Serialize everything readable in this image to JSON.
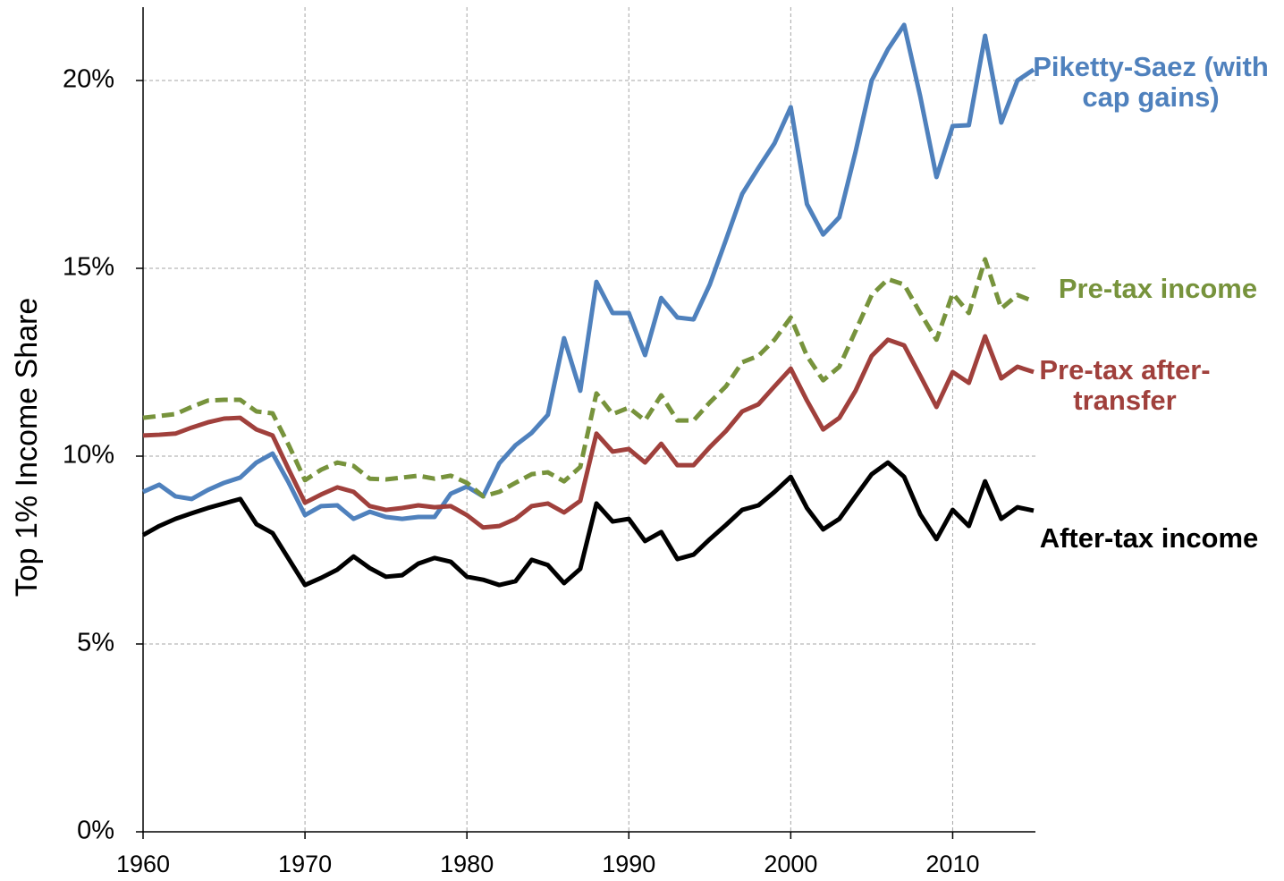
{
  "chart_data": {
    "type": "line",
    "ylabel": "Top 1% Income Share",
    "x": [
      1960,
      1961,
      1962,
      1963,
      1964,
      1965,
      1966,
      1967,
      1968,
      1969,
      1970,
      1971,
      1972,
      1973,
      1974,
      1975,
      1976,
      1977,
      1978,
      1979,
      1980,
      1981,
      1982,
      1983,
      1984,
      1985,
      1986,
      1987,
      1988,
      1989,
      1990,
      1991,
      1992,
      1993,
      1994,
      1995,
      1996,
      1997,
      1998,
      1999,
      2000,
      2001,
      2002,
      2003,
      2004,
      2005,
      2006,
      2007,
      2008,
      2009,
      2010,
      2011,
      2012,
      2013,
      2014,
      2015
    ],
    "xlim": [
      1960,
      2015
    ],
    "xticks": [
      1960,
      1970,
      1980,
      1990,
      2000,
      2010
    ],
    "ylim": [
      0,
      22.5
    ],
    "yticks": [
      {
        "value": 0,
        "label": "0%"
      },
      {
        "value": 5,
        "label": "5%"
      },
      {
        "value": 10,
        "label": "10%"
      },
      {
        "value": 15,
        "label": "15%"
      },
      {
        "value": 20,
        "label": "20%"
      }
    ],
    "grid": true,
    "series": [
      {
        "name": "Piketty-Saez (with cap gains)",
        "color": "#4f81bd",
        "dashed": false,
        "values": [
          9.05,
          9.24,
          8.93,
          8.86,
          9.1,
          9.29,
          9.43,
          9.83,
          10.07,
          9.29,
          8.43,
          8.67,
          8.69,
          8.33,
          8.52,
          8.38,
          8.33,
          8.38,
          8.38,
          9.0,
          9.19,
          8.93,
          9.81,
          10.29,
          10.62,
          11.1,
          13.14,
          11.74,
          14.64,
          13.81,
          13.81,
          12.69,
          14.21,
          13.69,
          13.64,
          14.57,
          15.76,
          16.98,
          17.67,
          18.33,
          19.29,
          16.71,
          15.9,
          16.36,
          18.1,
          20.0,
          20.83,
          21.48,
          19.57,
          17.43,
          18.79,
          18.81,
          21.19,
          18.88,
          20.0,
          20.29
        ]
      },
      {
        "name": "Pre-tax income",
        "color": "#77933c",
        "dashed": true,
        "values": [
          11.02,
          11.07,
          11.12,
          11.31,
          11.48,
          11.5,
          11.5,
          11.19,
          11.14,
          10.29,
          9.36,
          9.64,
          9.83,
          9.74,
          9.4,
          9.38,
          9.43,
          9.48,
          9.4,
          9.48,
          9.29,
          8.93,
          9.05,
          9.29,
          9.52,
          9.57,
          9.33,
          9.71,
          11.67,
          11.12,
          11.29,
          10.95,
          11.62,
          10.95,
          10.95,
          11.43,
          11.86,
          12.5,
          12.67,
          13.1,
          13.69,
          12.67,
          12.02,
          12.38,
          13.33,
          14.29,
          14.71,
          14.57,
          13.81,
          13.1,
          14.33,
          13.81,
          15.24,
          13.93,
          14.29,
          14.12
        ]
      },
      {
        "name": "Pre-tax after-transfer",
        "color": "#a0403c",
        "dashed": false,
        "values": [
          10.55,
          10.57,
          10.6,
          10.76,
          10.9,
          11.0,
          11.02,
          10.71,
          10.55,
          9.64,
          8.76,
          8.98,
          9.17,
          9.05,
          8.67,
          8.57,
          8.62,
          8.69,
          8.64,
          8.67,
          8.43,
          8.1,
          8.14,
          8.33,
          8.67,
          8.74,
          8.5,
          8.81,
          10.6,
          10.12,
          10.19,
          9.83,
          10.33,
          9.76,
          9.76,
          10.24,
          10.67,
          11.19,
          11.38,
          11.86,
          12.33,
          11.48,
          10.71,
          11.02,
          11.74,
          12.67,
          13.1,
          12.95,
          12.14,
          11.31,
          12.24,
          11.95,
          13.19,
          12.07,
          12.38,
          12.24
        ]
      },
      {
        "name": "After-tax income",
        "color": "#000000",
        "dashed": false,
        "values": [
          7.9,
          8.14,
          8.33,
          8.48,
          8.62,
          8.74,
          8.86,
          8.19,
          7.95,
          7.26,
          6.57,
          6.76,
          6.98,
          7.33,
          7.02,
          6.79,
          6.83,
          7.14,
          7.29,
          7.19,
          6.79,
          6.71,
          6.57,
          6.67,
          7.24,
          7.1,
          6.62,
          7.0,
          8.74,
          8.26,
          8.33,
          7.74,
          7.98,
          7.26,
          7.38,
          7.79,
          8.17,
          8.57,
          8.69,
          9.05,
          9.45,
          8.62,
          8.05,
          8.33,
          8.93,
          9.52,
          9.83,
          9.45,
          8.45,
          7.79,
          8.57,
          8.14,
          9.33,
          8.33,
          8.64,
          8.55
        ]
      }
    ]
  }
}
